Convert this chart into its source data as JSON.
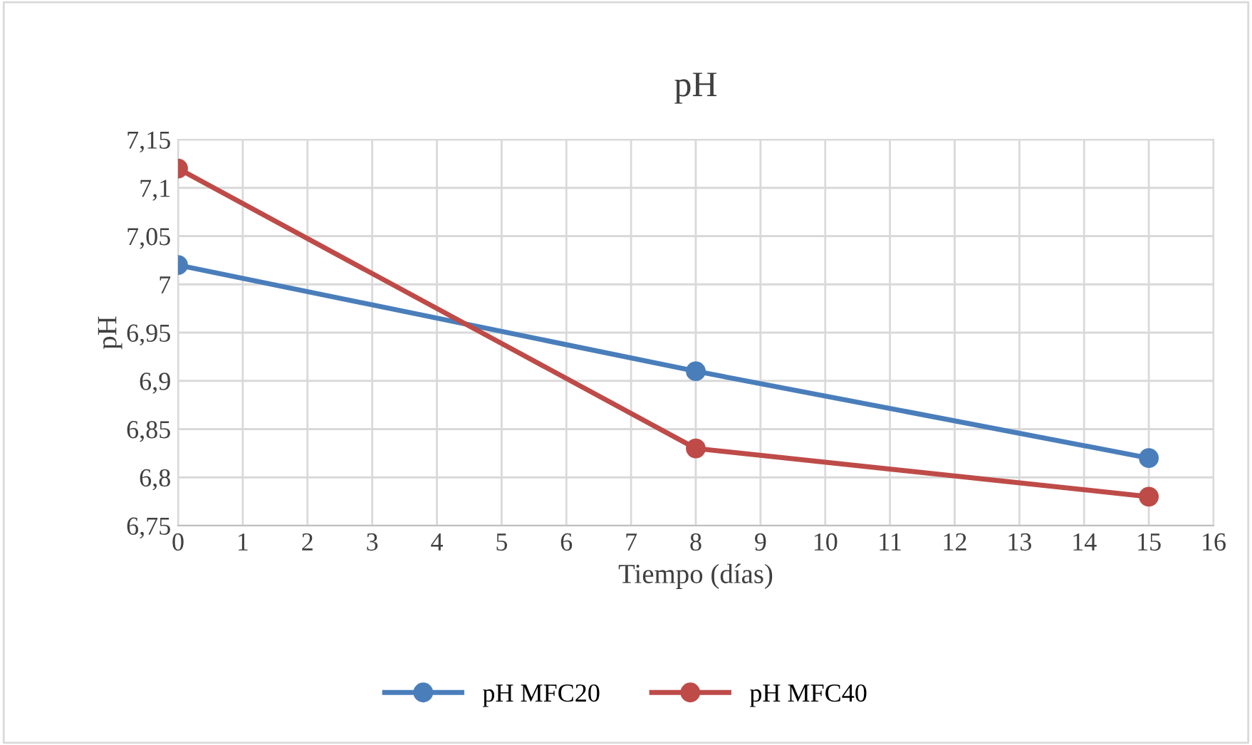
{
  "chart_data": {
    "type": "line",
    "title": "pH",
    "xlabel": "Tiempo (días)",
    "ylabel": "pH",
    "series": [
      {
        "name": "pH MFC20",
        "color": "#4a7ebb",
        "x": [
          0,
          8,
          15
        ],
        "values": [
          7.02,
          6.91,
          6.82
        ]
      },
      {
        "name": "pH MFC40",
        "color": "#be4b48",
        "x": [
          0,
          8,
          15
        ],
        "values": [
          7.12,
          6.83,
          6.78
        ]
      }
    ],
    "xlim": [
      0,
      16
    ],
    "xticks": [
      0,
      1,
      2,
      3,
      4,
      5,
      6,
      7,
      8,
      9,
      10,
      11,
      12,
      13,
      14,
      15,
      16
    ],
    "ylim": [
      6.75,
      7.15
    ],
    "yticks": [
      {
        "value": 6.75,
        "label": "6,75"
      },
      {
        "value": 6.8,
        "label": "6,8"
      },
      {
        "value": 6.85,
        "label": "6,85"
      },
      {
        "value": 6.9,
        "label": "6,9"
      },
      {
        "value": 6.95,
        "label": "6,95"
      },
      {
        "value": 7,
        "label": "7"
      },
      {
        "value": 7.05,
        "label": "7,05"
      },
      {
        "value": 7.1,
        "label": "7,1"
      },
      {
        "value": 7.15,
        "label": "7,15"
      }
    ],
    "grid": true,
    "legend": "bottom",
    "marker": "circle",
    "line_style": "solid"
  }
}
